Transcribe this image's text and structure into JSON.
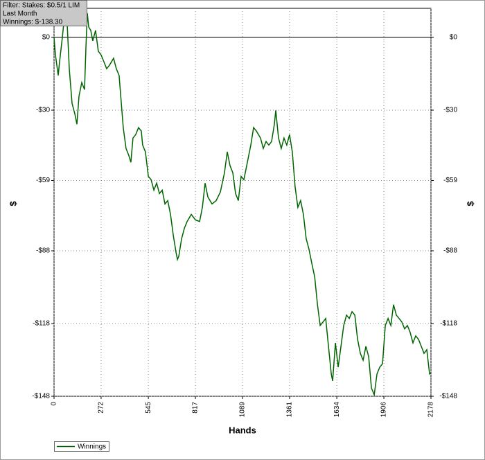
{
  "chart_data": {
    "type": "line",
    "info_lines": [
      "Filter: Stakes: $0.5/1 LIM",
      "Last Month",
      "Winnings: $-138.30"
    ],
    "x_label": "Hands",
    "y_label": "$",
    "y2_label": "$",
    "xlim": [
      0,
      2178
    ],
    "ylim": [
      -148,
      12
    ],
    "xticks": [
      0,
      272,
      545,
      817,
      1089,
      1361,
      1634,
      1906,
      2178
    ],
    "yticks": [
      {
        "value": 0,
        "label": "$0"
      },
      {
        "value": -30,
        "label": "-$30"
      },
      {
        "value": -59,
        "label": "-$59"
      },
      {
        "value": -88,
        "label": "-$88"
      },
      {
        "value": -118,
        "label": "-$118"
      },
      {
        "value": -148,
        "label": "-$148"
      }
    ],
    "grid": true,
    "x": [
      0,
      8,
      24,
      32,
      48,
      60,
      72,
      88,
      104,
      120,
      132,
      144,
      160,
      176,
      184,
      192,
      200,
      212,
      224,
      240,
      256,
      272,
      288,
      304,
      320,
      344,
      360,
      376,
      392,
      400,
      416,
      432,
      444,
      456,
      472,
      488,
      504,
      512,
      528,
      545,
      561,
      577,
      593,
      609,
      625,
      641,
      657,
      673,
      689,
      705,
      713,
      721,
      737,
      753,
      769,
      793,
      817,
      841,
      857,
      873,
      889,
      913,
      937,
      961,
      985,
      1001,
      1017,
      1033,
      1049,
      1065,
      1081,
      1097,
      1121,
      1137,
      1153,
      1169,
      1193,
      1209,
      1225,
      1241,
      1257,
      1273,
      1281,
      1297,
      1313,
      1329,
      1345,
      1361,
      1377,
      1393,
      1409,
      1425,
      1441,
      1457,
      1473,
      1489,
      1506,
      1522,
      1538,
      1554,
      1570,
      1586,
      1602,
      1610,
      1626,
      1642,
      1658,
      1674,
      1690,
      1706,
      1722,
      1738,
      1754,
      1770,
      1786,
      1802,
      1818,
      1834,
      1850,
      1866,
      1882,
      1898,
      1914,
      1930,
      1946,
      1962,
      1978,
      1994,
      2010,
      2026,
      2042,
      2058,
      2074,
      2090,
      2106,
      2122,
      2138,
      2154,
      2170,
      2178
    ],
    "series": [
      {
        "name": "Winnings",
        "color": "#006400",
        "values": [
          0,
          -7.2,
          -15.7,
          -10.0,
          0,
          8.6,
          11.5,
          -12.9,
          -27.2,
          -31.5,
          -35.8,
          -24.3,
          -18.6,
          -21.5,
          -4.3,
          10.0,
          4.3,
          2.9,
          -1.4,
          2.9,
          -5.7,
          -7.2,
          -10.0,
          -12.9,
          -11.5,
          -8.6,
          -12.9,
          -15.7,
          -30.1,
          -37.2,
          -45.8,
          -48.7,
          -51.5,
          -41.5,
          -40.1,
          -37.2,
          -38.6,
          -44.4,
          -47.2,
          -57.3,
          -58.7,
          -63.0,
          -60.1,
          -64.4,
          -63.0,
          -68.7,
          -67.3,
          -73.0,
          -81.6,
          -88.7,
          -91.6,
          -90.2,
          -83.0,
          -78.7,
          -75.9,
          -73.0,
          -75.3,
          -75.9,
          -70.1,
          -60.1,
          -65.8,
          -68.7,
          -67.3,
          -63.8,
          -55.8,
          -47.2,
          -52.9,
          -55.8,
          -64.4,
          -67.3,
          -57.3,
          -58.7,
          -50.1,
          -44.4,
          -37.2,
          -38.6,
          -41.5,
          -45.8,
          -42.9,
          -44.4,
          -42.9,
          -35.8,
          -30.1,
          -41.5,
          -45.8,
          -41.5,
          -44.4,
          -40.1,
          -47.2,
          -61.6,
          -70.1,
          -67.3,
          -73.0,
          -83.0,
          -87.3,
          -93.0,
          -98.8,
          -110.2,
          -118.8,
          -117.4,
          -115.9,
          -127.4,
          -138.8,
          -141.7,
          -126.0,
          -136.0,
          -127.4,
          -118.8,
          -114.5,
          -115.9,
          -113.1,
          -114.5,
          -124.5,
          -130.3,
          -133.1,
          -127.4,
          -131.7,
          -144.6,
          -147.4,
          -138.8,
          -136.0,
          -134.6,
          -118.8,
          -115.9,
          -118.8,
          -110.2,
          -114.5,
          -115.9,
          -117.4,
          -120.2,
          -118.8,
          -121.7,
          -126.0,
          -123.1,
          -124.5,
          -127.4,
          -130.3,
          -128.8,
          -138.8,
          -138.3
        ]
      }
    ]
  }
}
